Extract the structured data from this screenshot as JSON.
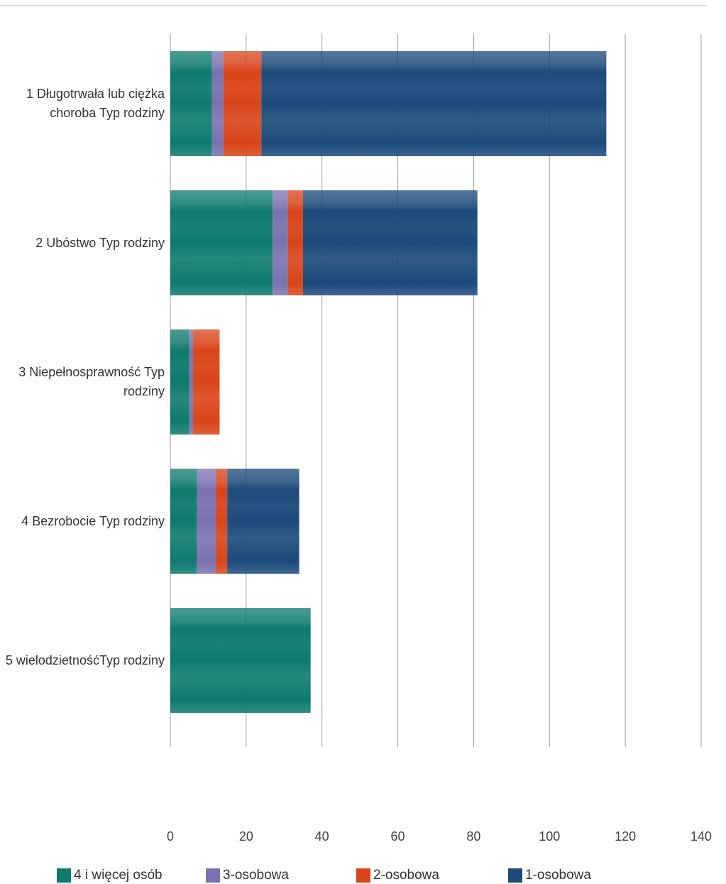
{
  "chart_data": {
    "type": "stacked_barh",
    "categories": [
      "1 Długotrwała lub ciężka choroba Typ rodziny",
      "2 Ubóstwo Typ rodziny",
      "3 Niepełnosprawność Typ rodziny",
      "4 Bezrobocie Typ rodziny",
      "5 wielodzietnośćTyp rodziny"
    ],
    "series": [
      {
        "name": "4  i więcej osób",
        "color": "#0e7a6e",
        "values": [
          11,
          27,
          5,
          7,
          37
        ]
      },
      {
        "name": "3-osobowa",
        "color": "#7a72b0",
        "values": [
          3,
          4,
          1,
          5,
          0
        ]
      },
      {
        "name": "2-osobowa",
        "color": "#d9441a",
        "values": [
          10,
          4,
          7,
          3,
          0
        ]
      },
      {
        "name": "1-osobowa",
        "color": "#1c4a7a",
        "values": [
          91,
          46,
          0,
          19,
          0
        ]
      }
    ],
    "xlim": [
      0,
      146
    ],
    "xticks": [
      0,
      20,
      40,
      60,
      80,
      100,
      120,
      140
    ],
    "grid": true,
    "legend": "bottom"
  }
}
